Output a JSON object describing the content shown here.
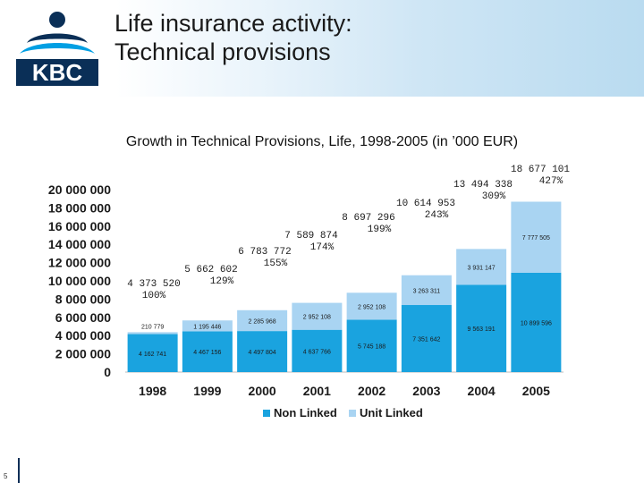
{
  "header": {
    "title_line1": "Life insurance activity:",
    "title_line2": "Technical provisions",
    "logo_text": "KBC"
  },
  "page_number": "5",
  "colors": {
    "non_linked": "#1aa3df",
    "unit_linked": "#a9d4f2",
    "logo_blue": "#0a2f57",
    "logo_light": "#009fe3"
  },
  "chart_data": {
    "type": "bar",
    "stacked": true,
    "title": "Growth in Technical Provisions, Life, 1998-2005 (in ’000 EUR)",
    "categories": [
      "1998",
      "1999",
      "2000",
      "2001",
      "2002",
      "2003",
      "2004",
      "2005"
    ],
    "series": [
      {
        "name": "Non Linked",
        "color": "#1aa3df",
        "values": [
          4162741,
          4467156,
          4497804,
          4637766,
          5745188,
          7351642,
          9563191,
          10899596
        ],
        "labels": [
          "4 162 741",
          "4 467 156",
          "4 497 804",
          "4 637 766",
          "5 745 188",
          "7 351 642",
          "9 563 191",
          "10 899 596"
        ]
      },
      {
        "name": "Unit Linked",
        "color": "#a9d4f2",
        "values": [
          210779,
          1195446,
          2285968,
          2952108,
          2952108,
          3263311,
          3931147,
          7777505
        ],
        "labels": [
          "210 779",
          "1 195 446",
          "2 285 968",
          "2 952 108",
          "2 952 108",
          "3 263 311",
          "3 931 147",
          "7 777 505"
        ]
      }
    ],
    "totals": [
      "4 373 520",
      "5 662 602",
      "6 783 772",
      "7 589 874",
      "8 697 296",
      "10 614 953",
      "13 494 338",
      "18 677 101"
    ],
    "growth": [
      "100%",
      "129%",
      "155%",
      "174%",
      "199%",
      "243%",
      "309%",
      "427%"
    ],
    "ylim": [
      0,
      20000000
    ],
    "yticks": [
      "0",
      "2 000 000",
      "4 000 000",
      "6 000 000",
      "8 000 000",
      "10 000 000",
      "12 000 000",
      "14 000 000",
      "16 000 000",
      "18 000 000",
      "20 000 000"
    ],
    "legend": {
      "position": "bottom",
      "items": [
        "Non Linked",
        "Unit Linked"
      ]
    },
    "grid": false
  }
}
